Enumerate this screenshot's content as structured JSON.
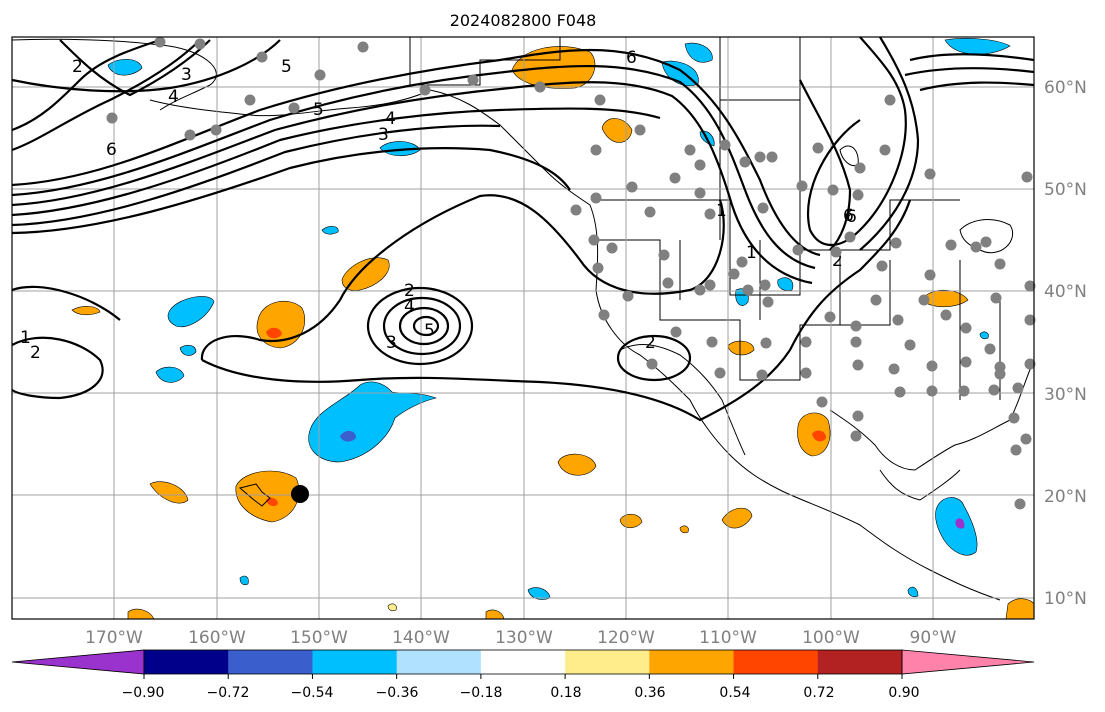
{
  "title": "2024082800 F048",
  "map": {
    "lat_labels": [
      "60°N",
      "50°N",
      "40°N",
      "30°N",
      "20°N",
      "10°N"
    ],
    "lon_labels": [
      "170°W",
      "160°W",
      "150°W",
      "140°W",
      "130°W",
      "120°W",
      "110°W",
      "100°W",
      "90°W"
    ],
    "contour_labels": [
      "2",
      "3",
      "4",
      "6",
      "5",
      "5",
      "4",
      "3",
      "6",
      "6",
      "1",
      "1",
      "2",
      "2",
      "4",
      "5",
      "3",
      "1",
      "2",
      "2",
      "6"
    ],
    "colors": {
      "contour": "#000000",
      "grid": "#a0a0a0",
      "coast": "#000000",
      "station": "#808080",
      "marker": "#000000"
    }
  },
  "colorbar": {
    "tick_labels": [
      "−0.90",
      "−0.72",
      "−0.54",
      "−0.36",
      "−0.18",
      "0.18",
      "0.36",
      "0.54",
      "0.72",
      "0.90"
    ],
    "colors": [
      "#9a32cd",
      "#00008b",
      "#3a5fcd",
      "#00bfff",
      "#b0e2ff",
      "#ffffff",
      "#ffec8b",
      "#ffa500",
      "#ff4500",
      "#b22222",
      "#ff82ab"
    ]
  }
}
